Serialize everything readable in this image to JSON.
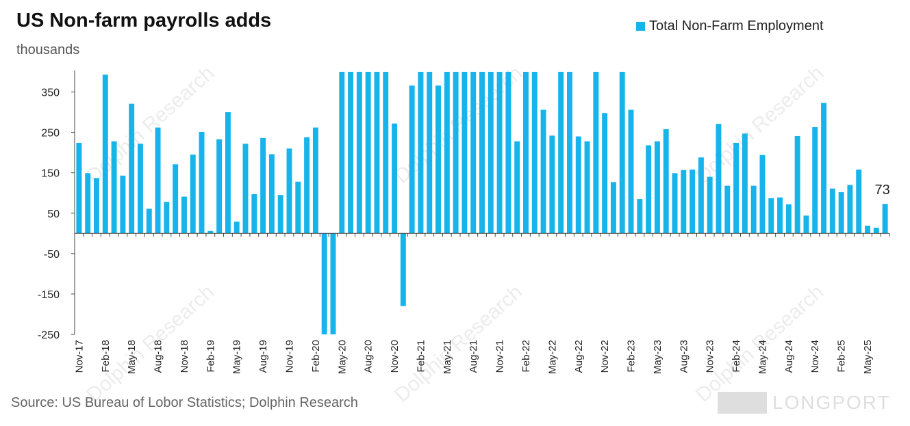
{
  "title": "US Non-farm payrolls adds",
  "subtitle": "thousands",
  "source": "Source: US Bureau of Lobor Statistics; Dolphin Research",
  "watermark": "Dolphin Research",
  "footer_logo": "LONGPORT",
  "colors": {
    "bar": "#16b4ea",
    "axis": "#444444",
    "text": "#222222"
  },
  "chart_data": {
    "type": "bar",
    "ylabel": "thousands",
    "ylim": [
      -250,
      400
    ],
    "yticks": [
      350,
      250,
      150,
      50,
      -50,
      -150,
      -250
    ],
    "series": [
      {
        "name": "Total Non-Farm Employment",
        "values": [
          224,
          149,
          137,
          393,
          228,
          143,
          321,
          222,
          61,
          262,
          78,
          171,
          91,
          195,
          251,
          6,
          233,
          300,
          29,
          222,
          97,
          236,
          196,
          95,
          210,
          128,
          238,
          262,
          -250,
          -250,
          400,
          400,
          400,
          400,
          400,
          400,
          272,
          -180,
          366,
          400,
          400,
          366,
          400,
          400,
          400,
          400,
          400,
          400,
          400,
          400,
          228,
          400,
          400,
          306,
          242,
          400,
          400,
          240,
          228,
          400,
          298,
          127,
          400,
          306,
          85,
          218,
          228,
          258,
          149,
          157,
          158,
          188,
          140,
          271,
          118,
          224,
          247,
          118,
          194,
          87,
          89,
          72,
          241,
          44,
          263,
          323,
          111,
          102,
          120,
          158,
          19,
          14,
          73
        ]
      }
    ],
    "start_month": "Nov-17",
    "x_tick_labels": [
      "Nov-17",
      "Feb-18",
      "May-18",
      "Aug-18",
      "Nov-18",
      "Feb-19",
      "May-19",
      "Aug-19",
      "Nov-19",
      "Feb-20",
      "May-20",
      "Aug-20",
      "Nov-20",
      "Feb-21",
      "May-21",
      "Aug-21",
      "Nov-21",
      "Feb-22",
      "May-22",
      "Aug-22",
      "Nov-22",
      "Feb-23",
      "May-23",
      "Aug-23",
      "Nov-23",
      "Feb-24",
      "May-24",
      "Aug-24",
      "Nov-24",
      "Feb-25",
      "May-25"
    ],
    "annotation": {
      "index": 92,
      "label": "73"
    }
  }
}
